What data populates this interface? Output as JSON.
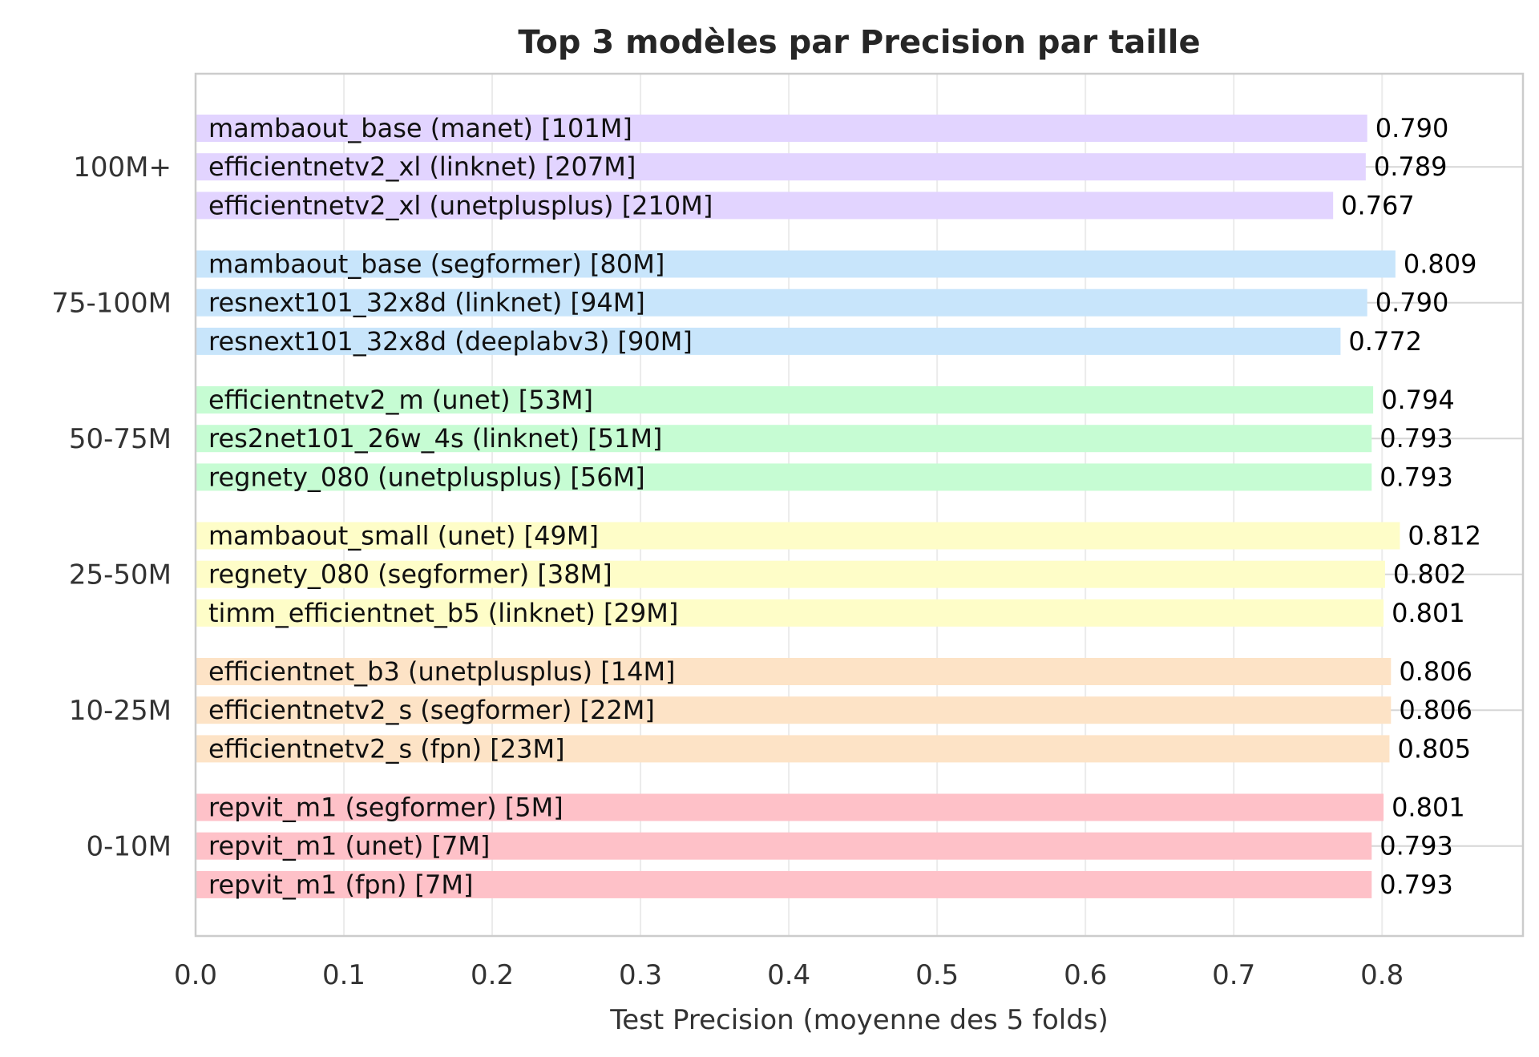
{
  "chart_data": {
    "type": "bar",
    "orientation": "horizontal",
    "title": "Top 3 modèles par Precision par taille",
    "xlabel": "Test Precision (moyenne des 5 folds)",
    "ylabel": "",
    "xlim": [
      0,
      0.895
    ],
    "xticks": [
      "0.0",
      "0.1",
      "0.2",
      "0.3",
      "0.4",
      "0.5",
      "0.6",
      "0.7",
      "0.8"
    ],
    "grid": true,
    "groups": [
      {
        "name": "100M+",
        "color": "#E2D4FF",
        "bars": [
          {
            "label": "mambaout_base (manet) [101M]",
            "value": 0.79,
            "value_label": "0.790"
          },
          {
            "label": "efficientnetv2_xl (linknet) [207M]",
            "value": 0.789,
            "value_label": "0.789"
          },
          {
            "label": "efficientnetv2_xl (unetplusplus) [210M]",
            "value": 0.767,
            "value_label": "0.767"
          }
        ]
      },
      {
        "name": "75-100M",
        "color": "#C8E5FB",
        "bars": [
          {
            "label": "mambaout_base (segformer) [80M]",
            "value": 0.809,
            "value_label": "0.809"
          },
          {
            "label": "resnext101_32x8d (linknet) [94M]",
            "value": 0.79,
            "value_label": "0.790"
          },
          {
            "label": "resnext101_32x8d (deeplabv3) [90M]",
            "value": 0.772,
            "value_label": "0.772"
          }
        ]
      },
      {
        "name": "50-75M",
        "color": "#C6FCD3",
        "bars": [
          {
            "label": "efficientnetv2_m (unet) [53M]",
            "value": 0.794,
            "value_label": "0.794"
          },
          {
            "label": "res2net101_26w_4s (linknet) [51M]",
            "value": 0.793,
            "value_label": "0.793"
          },
          {
            "label": "regnety_080 (unetplusplus) [56M]",
            "value": 0.793,
            "value_label": "0.793"
          }
        ]
      },
      {
        "name": "25-50M",
        "color": "#FEFDC8",
        "bars": [
          {
            "label": "mambaout_small (unet) [49M]",
            "value": 0.812,
            "value_label": "0.812"
          },
          {
            "label": "regnety_080 (segformer) [38M]",
            "value": 0.802,
            "value_label": "0.802"
          },
          {
            "label": "timm_efficientnet_b5 (linknet) [29M]",
            "value": 0.801,
            "value_label": "0.801"
          }
        ]
      },
      {
        "name": "10-25M",
        "color": "#FDE3C6",
        "bars": [
          {
            "label": "efficientnet_b3 (unetplusplus) [14M]",
            "value": 0.806,
            "value_label": "0.806"
          },
          {
            "label": "efficientnetv2_s (segformer) [22M]",
            "value": 0.806,
            "value_label": "0.806"
          },
          {
            "label": "efficientnetv2_s (fpn) [23M]",
            "value": 0.805,
            "value_label": "0.805"
          }
        ]
      },
      {
        "name": "0-10M",
        "color": "#FEC1C8",
        "bars": [
          {
            "label": "repvit_m1 (segformer) [5M]",
            "value": 0.801,
            "value_label": "0.801"
          },
          {
            "label": "repvit_m1 (unet) [7M]",
            "value": 0.793,
            "value_label": "0.793"
          },
          {
            "label": "repvit_m1 (fpn) [7M]",
            "value": 0.793,
            "value_label": "0.793"
          }
        ]
      }
    ]
  }
}
